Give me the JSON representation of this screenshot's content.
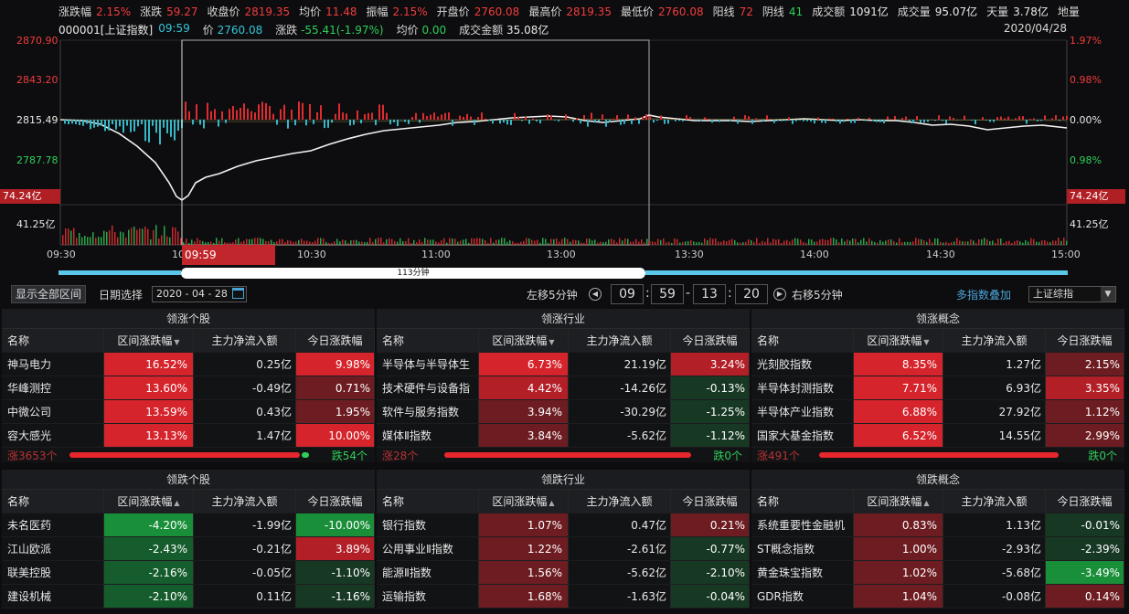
{
  "top_stats": [
    {
      "label": "涨跌幅",
      "value": "2.15%",
      "color": "red"
    },
    {
      "label": "涨跌",
      "value": "59.27",
      "color": "red"
    },
    {
      "label": "收盘价",
      "value": "2819.35",
      "color": "red"
    },
    {
      "label": "均价",
      "value": "11.48",
      "color": "red"
    },
    {
      "label": "振幅",
      "value": "2.15%",
      "color": "red"
    },
    {
      "label": "开盘价",
      "value": "2760.08",
      "color": "red"
    },
    {
      "label": "最高价",
      "value": "2819.35",
      "color": "red"
    },
    {
      "label": "最低价",
      "value": "2760.08",
      "color": "red"
    },
    {
      "label": "阳线",
      "value": "72",
      "color": "red"
    },
    {
      "label": "阴线",
      "value": "41",
      "color": "green"
    },
    {
      "label": "成交额",
      "value": "1091亿",
      "color": "white"
    },
    {
      "label": "成交量",
      "value": "95.07亿",
      "color": "white"
    },
    {
      "label": "天量",
      "value": "3.78亿",
      "color": "white"
    },
    {
      "label": "地量",
      "value": "",
      "color": "white"
    }
  ],
  "info": {
    "code": "000001[上证指数]",
    "time": "09:59",
    "price_label": "价",
    "price": "2760.08",
    "change_label": "涨跌",
    "change": "-55.41(-1.97%)",
    "avg_label": "均价",
    "avg": "0.00",
    "amount_label": "成交金额",
    "amount": "35.08亿",
    "date": "2020/04/28"
  },
  "chart": {
    "left_axis": [
      "2870.90",
      "2843.20",
      "2815.49",
      "2787.78"
    ],
    "right_axis": [
      "1.97%",
      "0.98%",
      "0.00%",
      "0.98%"
    ],
    "volume_tag": "74.24亿",
    "volume_mid": "41.25亿",
    "time_labels": [
      "09:30",
      "10:00",
      "10:30",
      "11:00",
      "13:00",
      "13:30",
      "14:00",
      "14:30",
      "15:00"
    ],
    "cursor_time": "09:59",
    "selection_label": "113分钟"
  },
  "controls": {
    "show_all": "显示全部区间",
    "date_select": "日期选择",
    "date_value": "2020 - 04 - 28",
    "left_shift": "左移5分钟",
    "hour": "09",
    "minute": "59",
    "day": "13",
    "second": "20",
    "right_shift": "右移5分钟",
    "multi_index": "多指数叠加",
    "index_select": "上证综指"
  },
  "headers": {
    "name": "名称",
    "range": "区间涨跌幅",
    "flow": "主力净流入额",
    "today": "今日涨跌幅"
  },
  "panels": [
    {
      "title": "领涨个股",
      "sort": "▼",
      "rows": [
        [
          "神马电力",
          "16.52%",
          "0.25亿",
          "9.98%",
          "bred1",
          "bred1"
        ],
        [
          "华峰测控",
          "13.60%",
          "-0.49亿",
          "0.71%",
          "bred1",
          "bred3"
        ],
        [
          "中微公司",
          "13.59%",
          "0.43亿",
          "1.95%",
          "bred1",
          "bred3"
        ],
        [
          "容大感光",
          "13.13%",
          "1.47亿",
          "10.00%",
          "bred1",
          "bred1"
        ]
      ],
      "foot_l": "涨3653个",
      "foot_r": "跌54个"
    },
    {
      "title": "领涨行业",
      "sort": "▼",
      "rows": [
        [
          "半导体与半导体生",
          "6.73%",
          "21.19亿",
          "3.24%",
          "bred1",
          "bred2"
        ],
        [
          "技术硬件与设备指",
          "4.42%",
          "-14.26亿",
          "-0.13%",
          "bred2",
          "bgrn3"
        ],
        [
          "软件与服务指数",
          "3.94%",
          "-30.29亿",
          "-1.25%",
          "bred3",
          "bgrn3"
        ],
        [
          "媒体Ⅱ指数",
          "3.84%",
          "-5.62亿",
          "-1.12%",
          "bred3",
          "bgrn3"
        ]
      ],
      "foot_l": "涨28个",
      "foot_r": "跌0个"
    },
    {
      "title": "领涨概念",
      "sort": "▼",
      "rows": [
        [
          "光刻胶指数",
          "8.35%",
          "1.27亿",
          "2.15%",
          "bred1",
          "bred3"
        ],
        [
          "半导体封测指数",
          "7.71%",
          "6.93亿",
          "3.35%",
          "bred1",
          "bred2"
        ],
        [
          "半导体产业指数",
          "6.88%",
          "27.92亿",
          "1.12%",
          "bred1",
          "bred3"
        ],
        [
          "国家大基金指数",
          "6.52%",
          "14.55亿",
          "2.99%",
          "bred1",
          "bred3"
        ]
      ],
      "foot_l": "涨491个",
      "foot_r": "跌0个"
    },
    {
      "title": "领跌个股",
      "sort": "▲",
      "rows": [
        [
          "未名医药",
          "-4.20%",
          "-1.99亿",
          "-10.00%",
          "bgrn1",
          "bgrn1"
        ],
        [
          "江山欧派",
          "-2.43%",
          "-0.21亿",
          "3.89%",
          "bgrn2",
          "bred2"
        ],
        [
          "联美控股",
          "-2.16%",
          "-0.05亿",
          "-1.10%",
          "bgrn2",
          "bgrn3"
        ],
        [
          "建设机械",
          "-2.10%",
          "0.11亿",
          "-1.16%",
          "bgrn2",
          "bgrn3"
        ]
      ]
    },
    {
      "title": "领跌行业",
      "sort": "▲",
      "rows": [
        [
          "银行指数",
          "1.07%",
          "0.47亿",
          "0.21%",
          "bred3",
          "bred3"
        ],
        [
          "公用事业Ⅱ指数",
          "1.22%",
          "-2.61亿",
          "-0.77%",
          "bred3",
          "bgrn3"
        ],
        [
          "能源Ⅱ指数",
          "1.56%",
          "-5.62亿",
          "-2.10%",
          "bred3",
          "bgrn3"
        ],
        [
          "运输指数",
          "1.68%",
          "-1.63亿",
          "-0.04%",
          "bred3",
          "bgrn3"
        ]
      ]
    },
    {
      "title": "领跌概念",
      "sort": "▲",
      "rows": [
        [
          "系统重要性金融机",
          "0.83%",
          "1.13亿",
          "-0.01%",
          "bred3",
          "bgrn3"
        ],
        [
          "ST概念指数",
          "1.00%",
          "-2.93亿",
          "-2.39%",
          "bred3",
          "bgrn3"
        ],
        [
          "黄金珠宝指数",
          "1.02%",
          "-5.68亿",
          "-3.49%",
          "bred3",
          "bgrn1"
        ],
        [
          "GDR指数",
          "1.04%",
          "-0.08亿",
          "0.14%",
          "bred3",
          "bred3"
        ]
      ]
    }
  ],
  "colors": {
    "up": "#f03c3c",
    "down": "#2fcf5a",
    "cyan": "#33c7d8"
  }
}
